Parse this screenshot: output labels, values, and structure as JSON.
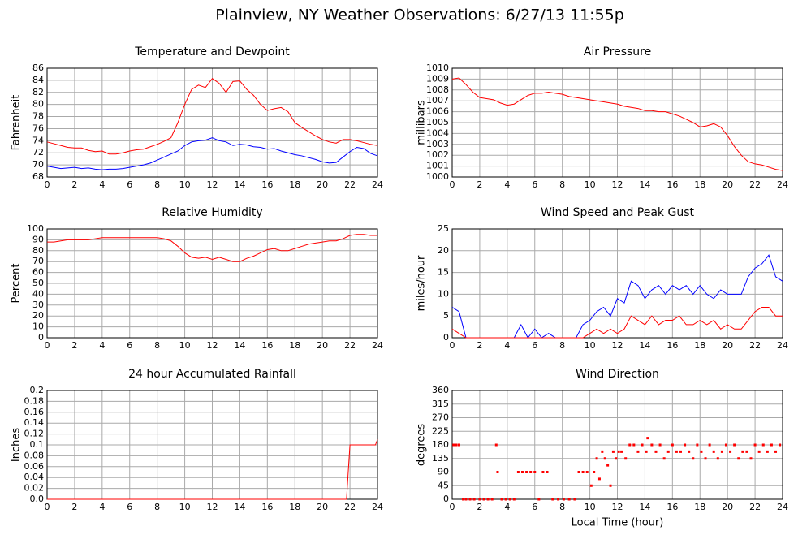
{
  "title": "Plainview, NY Weather Observations: 6/27/13 11:55p",
  "chart_data": [
    {
      "type": "line",
      "title": "Temperature and Dewpoint",
      "ylabel": "Fahrenheit",
      "xlim": [
        0,
        24
      ],
      "xticks": [
        0,
        2,
        4,
        6,
        8,
        10,
        12,
        14,
        16,
        18,
        20,
        22,
        24
      ],
      "ylim": [
        68,
        86
      ],
      "yticks": [
        68,
        70,
        72,
        74,
        76,
        78,
        80,
        82,
        84,
        86
      ],
      "grid": true,
      "x": [
        0,
        0.5,
        1,
        1.5,
        2,
        2.5,
        3,
        3.5,
        4,
        4.5,
        5,
        5.5,
        6,
        6.5,
        7,
        7.5,
        8,
        8.5,
        9,
        9.5,
        10,
        10.5,
        11,
        11.5,
        12,
        12.5,
        13,
        13.5,
        14,
        14.5,
        15,
        15.5,
        16,
        16.5,
        17,
        17.5,
        18,
        18.5,
        19,
        19.5,
        20,
        20.5,
        21,
        21.5,
        22,
        22.5,
        23,
        23.5,
        24
      ],
      "series": [
        {
          "color": "#ff0000",
          "values": [
            73.8,
            73.5,
            73.2,
            72.9,
            72.8,
            72.8,
            72.4,
            72.2,
            72.3,
            71.8,
            71.8,
            72,
            72.3,
            72.5,
            72.6,
            73,
            73.4,
            73.9,
            74.5,
            77,
            80,
            82.5,
            83.2,
            82.8,
            84.3,
            83.5,
            82,
            83.8,
            83.9,
            82.5,
            81.5,
            80,
            79,
            79.3,
            79.5,
            78.8,
            77,
            76.2,
            75.5,
            74.8,
            74.2,
            73.8,
            73.6,
            74.2,
            74.2,
            74,
            73.7,
            73.4,
            73.2
          ]
        },
        {
          "color": "#0000ff",
          "values": [
            69.8,
            69.6,
            69.4,
            69.5,
            69.6,
            69.4,
            69.5,
            69.3,
            69.2,
            69.3,
            69.3,
            69.4,
            69.6,
            69.8,
            70,
            70.3,
            70.8,
            71.3,
            71.8,
            72.3,
            73.2,
            73.8,
            74,
            74.1,
            74.5,
            74,
            73.8,
            73.2,
            73.4,
            73.3,
            73,
            72.9,
            72.6,
            72.7,
            72.3,
            72,
            71.7,
            71.5,
            71.2,
            70.9,
            70.5,
            70.3,
            70.4,
            71.3,
            72.2,
            72.9,
            72.7,
            71.9,
            71.5
          ]
        }
      ]
    },
    {
      "type": "line",
      "title": "Air Pressure",
      "ylabel": "millibars",
      "xlim": [
        0,
        24
      ],
      "xticks": [
        0,
        2,
        4,
        6,
        8,
        10,
        12,
        14,
        16,
        18,
        20,
        22,
        24
      ],
      "ylim": [
        1000,
        1010
      ],
      "yticks": [
        1000,
        1001,
        1002,
        1003,
        1004,
        1005,
        1006,
        1007,
        1008,
        1009,
        1010
      ],
      "grid": true,
      "x": [
        0,
        0.5,
        1,
        1.5,
        2,
        2.5,
        3,
        3.5,
        4,
        4.5,
        5,
        5.5,
        6,
        6.5,
        7,
        7.5,
        8,
        8.5,
        9,
        9.5,
        10,
        10.5,
        11,
        11.5,
        12,
        12.5,
        13,
        13.5,
        14,
        14.5,
        15,
        15.5,
        16,
        16.5,
        17,
        17.5,
        18,
        18.5,
        19,
        19.5,
        20,
        20.5,
        21,
        21.5,
        22,
        22.5,
        23,
        23.5,
        24
      ],
      "series": [
        {
          "color": "#ff0000",
          "values": [
            1009,
            1009.1,
            1008.5,
            1007.8,
            1007.3,
            1007.2,
            1007.1,
            1006.8,
            1006.6,
            1006.7,
            1007.1,
            1007.5,
            1007.7,
            1007.7,
            1007.8,
            1007.7,
            1007.6,
            1007.4,
            1007.3,
            1007.2,
            1007.1,
            1007,
            1006.9,
            1006.8,
            1006.7,
            1006.5,
            1006.4,
            1006.3,
            1006.1,
            1006.1,
            1006,
            1006,
            1005.8,
            1005.6,
            1005.3,
            1005,
            1004.6,
            1004.7,
            1004.9,
            1004.6,
            1003.8,
            1002.8,
            1002,
            1001.4,
            1001.2,
            1001.1,
            1000.9,
            1000.7,
            1000.6
          ]
        }
      ]
    },
    {
      "type": "line",
      "title": "Relative Humidity",
      "ylabel": "Percent",
      "xlim": [
        0,
        24
      ],
      "xticks": [
        0,
        2,
        4,
        6,
        8,
        10,
        12,
        14,
        16,
        18,
        20,
        22,
        24
      ],
      "ylim": [
        0,
        100
      ],
      "yticks": [
        0,
        10,
        20,
        30,
        40,
        50,
        60,
        70,
        80,
        90,
        100
      ],
      "grid": true,
      "x": [
        0,
        0.5,
        1,
        1.5,
        2,
        2.5,
        3,
        3.5,
        4,
        4.5,
        5,
        5.5,
        6,
        6.5,
        7,
        7.5,
        8,
        8.5,
        9,
        9.5,
        10,
        10.5,
        11,
        11.5,
        12,
        12.5,
        13,
        13.5,
        14,
        14.5,
        15,
        15.5,
        16,
        16.5,
        17,
        17.5,
        18,
        18.5,
        19,
        19.5,
        20,
        20.5,
        21,
        21.5,
        22,
        22.5,
        23,
        23.5,
        24
      ],
      "series": [
        {
          "color": "#ff0000",
          "values": [
            88,
            88,
            89,
            90,
            90,
            90,
            90,
            91,
            92,
            92,
            92,
            92,
            92,
            92,
            92,
            92,
            92,
            91,
            89,
            84,
            78,
            74,
            73,
            74,
            72,
            74,
            72,
            70,
            70,
            73,
            75,
            78,
            81,
            82,
            80,
            80,
            82,
            84,
            86,
            87,
            88,
            89,
            89,
            91,
            94,
            95,
            95,
            94,
            94
          ]
        }
      ]
    },
    {
      "type": "line",
      "title": "Wind Speed and Peak Gust",
      "ylabel": "miles/hour",
      "xlim": [
        0,
        24
      ],
      "xticks": [
        0,
        2,
        4,
        6,
        8,
        10,
        12,
        14,
        16,
        18,
        20,
        22,
        24
      ],
      "ylim": [
        0,
        25
      ],
      "yticks": [
        0,
        5,
        10,
        15,
        20,
        25
      ],
      "grid": true,
      "x": [
        0,
        0.5,
        1,
        1.5,
        2,
        2.5,
        3,
        3.5,
        4,
        4.5,
        5,
        5.5,
        6,
        6.5,
        7,
        7.5,
        8,
        8.5,
        9,
        9.5,
        10,
        10.5,
        11,
        11.5,
        12,
        12.5,
        13,
        13.5,
        14,
        14.5,
        15,
        15.5,
        16,
        16.5,
        17,
        17.5,
        18,
        18.5,
        19,
        19.5,
        20,
        20.5,
        21,
        21.5,
        22,
        22.5,
        23,
        23.5,
        24
      ],
      "series": [
        {
          "color": "#0000ff",
          "values": [
            7,
            6,
            0,
            0,
            0,
            0,
            0,
            0,
            0,
            0,
            3,
            0,
            2,
            0,
            1,
            0,
            0,
            0,
            0,
            3,
            4,
            6,
            7,
            5,
            9,
            8,
            13,
            12,
            9,
            11,
            12,
            10,
            12,
            11,
            12,
            10,
            12,
            10,
            9,
            11,
            10,
            10,
            10,
            14,
            16,
            17,
            19,
            14,
            13
          ]
        },
        {
          "color": "#ff0000",
          "values": [
            2,
            1,
            0,
            0,
            0,
            0,
            0,
            0,
            0,
            0,
            0,
            0,
            0,
            0,
            0,
            0,
            0,
            0,
            0,
            0,
            1,
            2,
            1,
            2,
            1,
            2,
            5,
            4,
            3,
            5,
            3,
            4,
            4,
            5,
            3,
            3,
            4,
            3,
            4,
            2,
            3,
            2,
            2,
            4,
            6,
            7,
            7,
            5,
            5
          ]
        }
      ]
    },
    {
      "type": "line",
      "title": "24 hour Accumulated Rainfall",
      "ylabel": "Inches",
      "xlim": [
        0,
        24
      ],
      "xticks": [
        0,
        2,
        4,
        6,
        8,
        10,
        12,
        14,
        16,
        18,
        20,
        22,
        24
      ],
      "ylim": [
        0,
        0.2
      ],
      "yticks": [
        {
          "value": 0,
          "label": "0.0"
        },
        0.02,
        0.04,
        0.06,
        0.08,
        0.1,
        0.12,
        0.14,
        0.16,
        0.18,
        0.2
      ],
      "grid": true,
      "x": [
        0,
        21.75,
        22,
        23.85,
        24
      ],
      "series": [
        {
          "color": "#ff0000",
          "values": [
            0,
            0,
            0.1,
            0.1,
            0.11
          ]
        }
      ]
    },
    {
      "type": "scatter",
      "title": "Wind Direction",
      "ylabel": "degrees",
      "xlabel": "Local Time (hour)",
      "xlim": [
        0,
        24
      ],
      "xticks": [
        0,
        2,
        4,
        6,
        8,
        10,
        12,
        14,
        16,
        18,
        20,
        22,
        24
      ],
      "ylim": [
        0,
        360
      ],
      "yticks": [
        0,
        45,
        90,
        135,
        180,
        225,
        270,
        315,
        360
      ],
      "grid": true,
      "color": "#ff0000",
      "x": [
        0.1,
        0.3,
        0.5,
        0.8,
        1.0,
        1.3,
        1.6,
        2.0,
        2.3,
        2.6,
        2.9,
        3.2,
        3.3,
        3.6,
        3.9,
        4.2,
        4.5,
        4.8,
        5.1,
        5.4,
        5.7,
        6.0,
        6.3,
        6.6,
        6.9,
        7.3,
        7.7,
        8.1,
        8.5,
        8.9,
        9.2,
        9.5,
        9.8,
        10.1,
        10.3,
        10.5,
        10.7,
        10.9,
        11.1,
        11.3,
        11.5,
        11.7,
        11.9,
        12.1,
        12.3,
        12.6,
        12.9,
        13.2,
        13.5,
        13.8,
        14.1,
        14.2,
        14.5,
        14.8,
        15.1,
        15.4,
        15.7,
        16.0,
        16.3,
        16.6,
        16.9,
        17.2,
        17.5,
        17.8,
        18.1,
        18.4,
        18.7,
        19.0,
        19.3,
        19.6,
        19.9,
        20.2,
        20.5,
        20.8,
        21.1,
        21.4,
        21.7,
        22.0,
        22.3,
        22.6,
        22.9,
        23.2,
        23.5,
        23.8
      ],
      "values": [
        180,
        180,
        180,
        0,
        0,
        0,
        0,
        0,
        0,
        0,
        0,
        180,
        90,
        0,
        0,
        0,
        0,
        90,
        90,
        90,
        90,
        90,
        0,
        90,
        90,
        0,
        0,
        0,
        0,
        0,
        90,
        90,
        90,
        45,
        90,
        135,
        67.5,
        157.5,
        135,
        112.5,
        45,
        157.5,
        135,
        157.5,
        157.5,
        135,
        180,
        180,
        157.5,
        180,
        157.5,
        202.5,
        180,
        157.5,
        180,
        135,
        157.5,
        180,
        157.5,
        157.5,
        180,
        157.5,
        135,
        180,
        157.5,
        135,
        180,
        157.5,
        135,
        157.5,
        180,
        157.5,
        180,
        135,
        157.5,
        157.5,
        135,
        180,
        157.5,
        180,
        157.5,
        180,
        157.5,
        180
      ]
    }
  ]
}
